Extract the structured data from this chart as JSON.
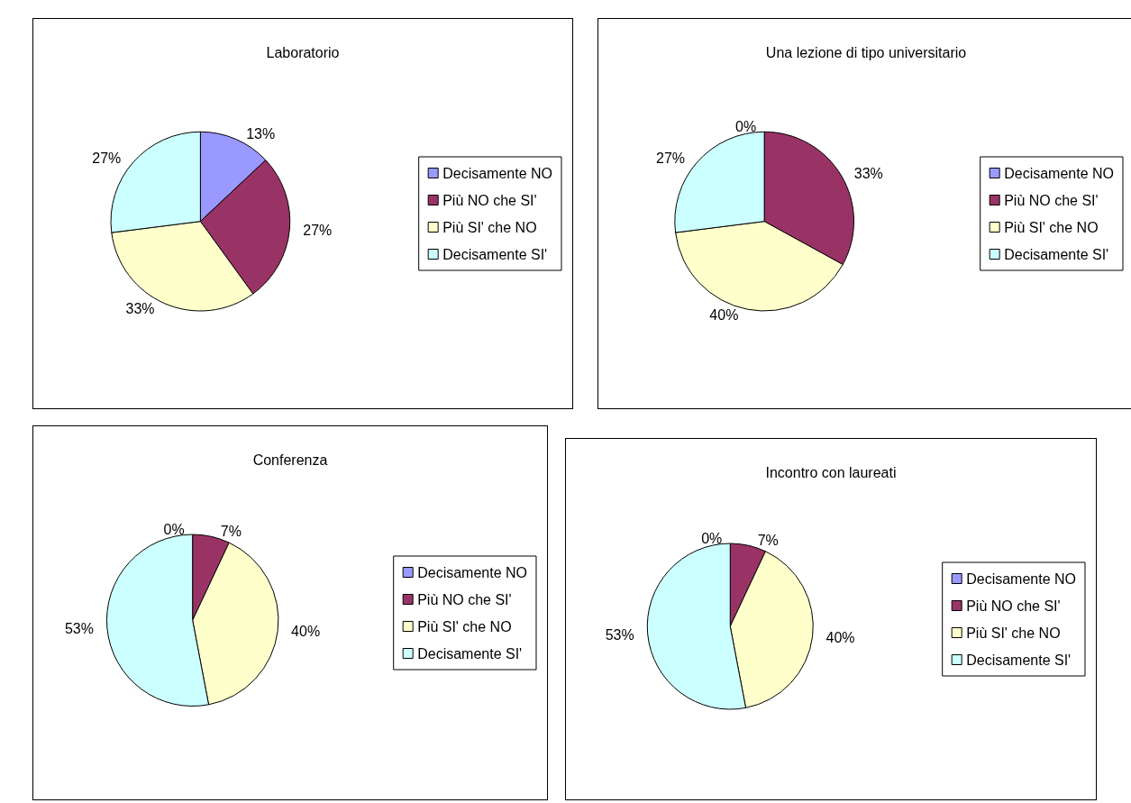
{
  "chart_data": [
    {
      "type": "pie",
      "title": "Laboratorio",
      "categories": [
        "Decisamente NO",
        "Più NO che SI'",
        "Più SI' che NO",
        "Decisamente SI'"
      ],
      "values": [
        13,
        27,
        33,
        27
      ],
      "value_labels": [
        "13%",
        "27%",
        "33%",
        "27%"
      ],
      "colors": [
        "#9999ff",
        "#993366",
        "#ffffcc",
        "#ccffff"
      ],
      "legend": "right"
    },
    {
      "type": "pie",
      "title": "Una lezione di tipo universitario",
      "categories": [
        "Decisamente NO",
        "Più NO che SI'",
        "Più SI' che NO",
        "Decisamente SI'"
      ],
      "values": [
        0,
        33,
        40,
        27
      ],
      "value_labels": [
        "0%",
        "33%",
        "40%",
        "27%"
      ],
      "colors": [
        "#9999ff",
        "#993366",
        "#ffffcc",
        "#ccffff"
      ],
      "legend": "right"
    },
    {
      "type": "pie",
      "title": "Conferenza",
      "categories": [
        "Decisamente NO",
        "Più NO che SI'",
        "Più SI' che NO",
        "Decisamente SI'"
      ],
      "values": [
        0,
        7,
        40,
        53
      ],
      "value_labels": [
        "0%",
        "7%",
        "40%",
        "53%"
      ],
      "colors": [
        "#9999ff",
        "#993366",
        "#ffffcc",
        "#ccffff"
      ],
      "legend": "right"
    },
    {
      "type": "pie",
      "title": "Incontro con laureati",
      "categories": [
        "Decisamente NO",
        "Più NO che SI'",
        "Più SI' che NO",
        "Decisamente SI'"
      ],
      "values": [
        0,
        7,
        40,
        53
      ],
      "value_labels": [
        "0%",
        "7%",
        "40%",
        "53%"
      ],
      "colors": [
        "#9999ff",
        "#993366",
        "#ffffcc",
        "#ccffff"
      ],
      "legend": "right"
    }
  ]
}
